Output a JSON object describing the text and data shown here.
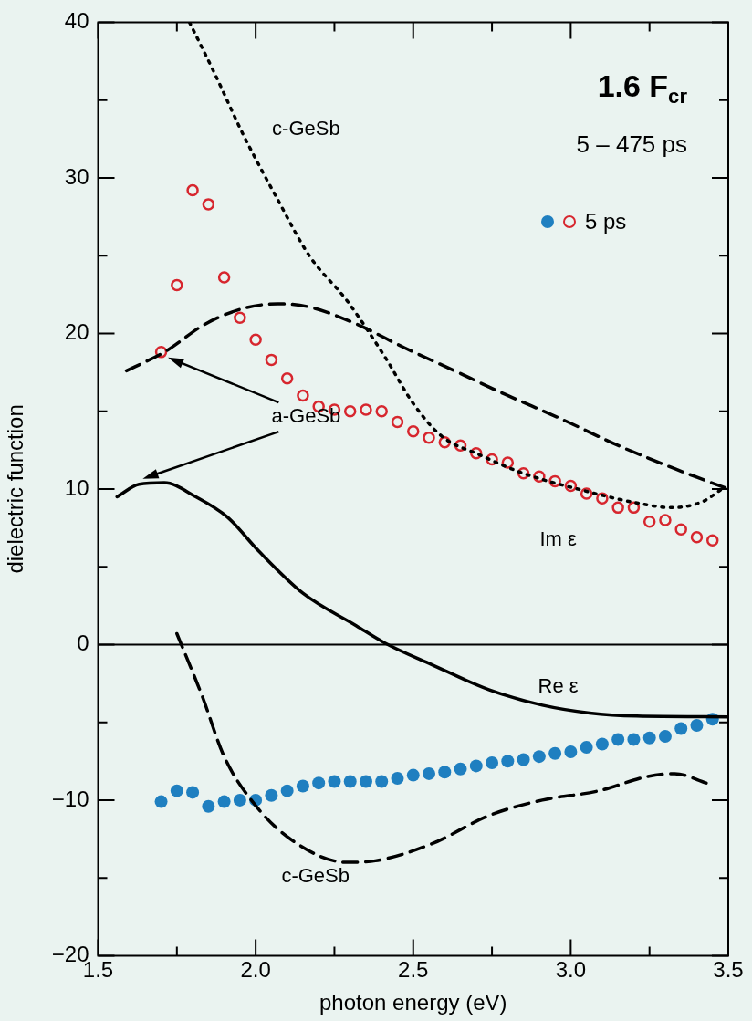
{
  "chart_data": {
    "type": "line",
    "title": "1.6 F$_{cr}$",
    "subtitle": "5 – 475 ps",
    "xlabel": "photon energy (eV)",
    "ylabel": "dielectric function",
    "xlim": [
      1.5,
      3.5
    ],
    "xticks": [
      1.5,
      {
        "value": 2,
        "label": "2.0"
      },
      2.5,
      {
        "value": 3,
        "label": "3.0"
      },
      3.5
    ],
    "ylim": [
      -20,
      40
    ],
    "yticks": [
      {
        "value": -20,
        "label": "−20"
      },
      {
        "value": -10,
        "label": "−10"
      },
      0,
      10,
      20,
      30,
      40
    ],
    "grid": false,
    "legend": "top right",
    "ref_lines": [
      {
        "axis": "y",
        "value": 0,
        "color": "#000000",
        "line_style": "solid"
      }
    ],
    "annotations": [
      "c-GeSb",
      "a-GeSb",
      "Im ε",
      "Re ε",
      "c-GeSb"
    ],
    "series": [
      {
        "color": "#000000",
        "line_style": "dotted",
        "marker": "none",
        "x": [
          1.79,
          1.87,
          1.96,
          2.07,
          2.17,
          2.29,
          2.41,
          2.5,
          2.59,
          2.71,
          2.85,
          3.06,
          3.21,
          3.32,
          3.42,
          3.48
        ],
        "values": [
          40,
          36.7,
          32.8,
          28.6,
          25,
          22.1,
          18.5,
          15.5,
          13.4,
          12.2,
          11,
          9.8,
          9.1,
          8.8,
          9.2,
          10
        ]
      },
      {
        "color": "#000000",
        "line_style": "dashed",
        "marker": "none",
        "x": [
          1.59,
          1.71,
          1.84,
          1.96,
          2.07,
          2.17,
          2.32,
          2.47,
          2.62,
          2.79,
          2.97,
          3.15,
          3.33,
          3.5
        ],
        "values": [
          17.6,
          18.8,
          20.6,
          21.6,
          21.9,
          21.7,
          20.6,
          19.1,
          17.7,
          16.1,
          14.5,
          12.8,
          11.3,
          10
        ]
      },
      {
        "color": "#000000",
        "line_style": "solid",
        "marker": "none",
        "x": [
          1.56,
          1.63,
          1.71,
          1.81,
          1.91,
          2.01,
          2.15,
          2.32,
          2.41,
          2.56,
          2.74,
          2.91,
          3.06,
          3.21,
          3.5
        ],
        "values": [
          9.5,
          10.3,
          10.4,
          9.5,
          8.2,
          6,
          3.3,
          1.2,
          0.1,
          -1.3,
          -2.9,
          -3.9,
          -4.4,
          -4.6,
          -4.65
        ]
      },
      {
        "color": "#000000",
        "line_style": "dashed",
        "marker": "none",
        "x": [
          1.75,
          1.83,
          1.9,
          1.99,
          2.11,
          2.29,
          2.38,
          2.56,
          2.74,
          2.91,
          3.09,
          3.24,
          3.33,
          3.43
        ],
        "values": [
          0.7,
          -3.3,
          -7.2,
          -10.1,
          -12.5,
          -14,
          -13.9,
          -12.8,
          -11,
          -10,
          -9.4,
          -8.5,
          -8.3,
          -8.9
        ]
      },
      {
        "type": "scatter",
        "color": "#1f7fc0",
        "marker": "circle",
        "x": [
          1.7,
          1.75,
          1.8,
          1.85,
          1.9,
          1.95,
          2,
          2.05,
          2.1,
          2.15,
          2.2,
          2.25,
          2.3,
          2.35,
          2.4,
          2.45,
          2.5,
          2.55,
          2.6,
          2.65,
          2.7,
          2.75,
          2.8,
          2.85,
          2.9,
          2.95,
          3,
          3.05,
          3.1,
          3.15,
          3.2,
          3.25,
          3.3,
          3.35,
          3.4,
          3.45
        ],
        "values": [
          -10.1,
          -9.4,
          -9.5,
          -10.4,
          -10.1,
          -10,
          -10,
          -9.7,
          -9.4,
          -9.1,
          -8.9,
          -8.8,
          -8.8,
          -8.8,
          -8.8,
          -8.6,
          -8.4,
          -8.3,
          -8.2,
          -8,
          -7.8,
          -7.6,
          -7.5,
          -7.4,
          -7.2,
          -7,
          -6.9,
          -6.6,
          -6.4,
          -6.1,
          -6.1,
          -6,
          -5.9,
          -5.4,
          -5.2,
          -4.8
        ]
      },
      {
        "type": "scatter",
        "name": "5 ps",
        "color": "#d7262e",
        "marker": "circle",
        "x": [
          1.7,
          1.75,
          1.8,
          1.85,
          1.9,
          1.95,
          2,
          2.05,
          2.1,
          2.15,
          2.2,
          2.25,
          2.3,
          2.35,
          2.4,
          2.45,
          2.5,
          2.55,
          2.6,
          2.65,
          2.7,
          2.75,
          2.8,
          2.85,
          2.9,
          2.95,
          3,
          3.05,
          3.1,
          3.15,
          3.2,
          3.25,
          3.3,
          3.35,
          3.4,
          3.45
        ],
        "values": [
          18.8,
          23.1,
          29.2,
          28.3,
          23.6,
          21,
          19.6,
          18.3,
          17.1,
          16,
          15.3,
          15.1,
          15,
          15.1,
          15,
          14.3,
          13.7,
          13.3,
          13,
          12.8,
          12.3,
          11.9,
          11.7,
          11,
          10.8,
          10.5,
          10.2,
          9.7,
          9.4,
          8.8,
          8.8,
          7.9,
          8,
          7.4,
          6.9,
          6.7
        ]
      }
    ]
  }
}
